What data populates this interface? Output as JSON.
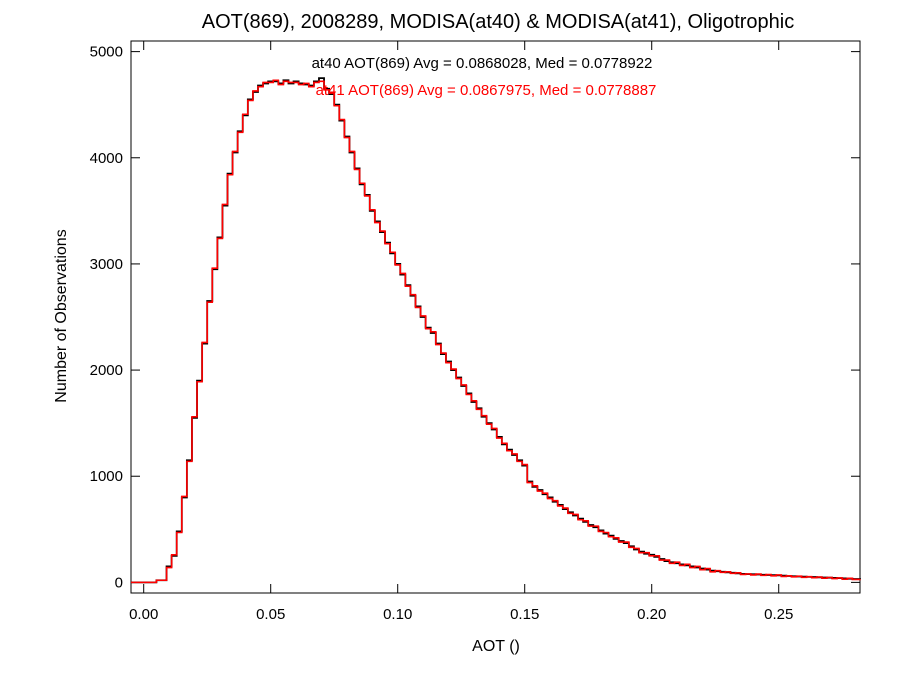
{
  "chart_data": {
    "type": "line",
    "title": "AOT(869), 2008289, MODISA(at40) & MODISA(at41), Oligotrophic",
    "xlabel": "AOT ()",
    "ylabel": "Number of Observations",
    "xlim": [
      -0.005,
      0.282
    ],
    "ylim": [
      -100,
      5100
    ],
    "xticks": [
      0.0,
      0.05,
      0.1,
      0.15,
      0.2,
      0.25
    ],
    "xtick_labels": [
      "0.00",
      "0.05",
      "0.10",
      "0.15",
      "0.20",
      "0.25"
    ],
    "yticks": [
      0,
      1000,
      2000,
      3000,
      4000,
      5000
    ],
    "ytick_labels": [
      "0",
      "1000",
      "2000",
      "3000",
      "4000",
      "5000"
    ],
    "grid": false,
    "annotations": [
      {
        "text": "at40 AOT(869) Avg = 0.0868028, Med = 0.0778922",
        "color": "#000000"
      },
      {
        "text": "at41 AOT(869) Avg = 0.0867975, Med = 0.0778887",
        "color": "#ff0000"
      }
    ],
    "series": [
      {
        "color": "#000000",
        "step": true,
        "x": [
          -0.005,
          0.0,
          0.005,
          0.009,
          0.011,
          0.013,
          0.015,
          0.017,
          0.019,
          0.021,
          0.023,
          0.025,
          0.027,
          0.029,
          0.031,
          0.033,
          0.035,
          0.037,
          0.039,
          0.041,
          0.043,
          0.045,
          0.047,
          0.049,
          0.051,
          0.053,
          0.055,
          0.057,
          0.059,
          0.061,
          0.063,
          0.065,
          0.067,
          0.069,
          0.071,
          0.073,
          0.075,
          0.077,
          0.079,
          0.081,
          0.083,
          0.085,
          0.087,
          0.089,
          0.091,
          0.093,
          0.095,
          0.097,
          0.099,
          0.101,
          0.103,
          0.105,
          0.107,
          0.109,
          0.111,
          0.113,
          0.115,
          0.117,
          0.119,
          0.121,
          0.123,
          0.125,
          0.127,
          0.129,
          0.131,
          0.133,
          0.135,
          0.137,
          0.139,
          0.141,
          0.143,
          0.145,
          0.147,
          0.149,
          0.151,
          0.153,
          0.155,
          0.157,
          0.159,
          0.161,
          0.163,
          0.165,
          0.167,
          0.169,
          0.171,
          0.173,
          0.175,
          0.177,
          0.179,
          0.181,
          0.183,
          0.185,
          0.187,
          0.189,
          0.191,
          0.193,
          0.195,
          0.197,
          0.199,
          0.201,
          0.203,
          0.205,
          0.207,
          0.209,
          0.211,
          0.213,
          0.215,
          0.217,
          0.219,
          0.221,
          0.223,
          0.225,
          0.227,
          0.229,
          0.231,
          0.233,
          0.235,
          0.237,
          0.239,
          0.241,
          0.243,
          0.245,
          0.247,
          0.249,
          0.251,
          0.253,
          0.255,
          0.257,
          0.259,
          0.261,
          0.263,
          0.265,
          0.267,
          0.269,
          0.271,
          0.273,
          0.275,
          0.277,
          0.279,
          0.282
        ],
        "y": [
          0,
          0,
          20,
          150,
          250,
          480,
          800,
          1150,
          1550,
          1900,
          2250,
          2650,
          2950,
          3250,
          3550,
          3850,
          4050,
          4250,
          4400,
          4550,
          4620,
          4680,
          4700,
          4720,
          4720,
          4700,
          4730,
          4700,
          4720,
          4700,
          4690,
          4680,
          4720,
          4750,
          4650,
          4600,
          4500,
          4350,
          4200,
          4050,
          3900,
          3750,
          3650,
          3500,
          3400,
          3300,
          3200,
          3100,
          3000,
          2900,
          2800,
          2700,
          2600,
          2500,
          2400,
          2350,
          2250,
          2150,
          2080,
          2000,
          1930,
          1850,
          1780,
          1700,
          1640,
          1560,
          1500,
          1440,
          1370,
          1300,
          1250,
          1200,
          1150,
          1100,
          950,
          900,
          870,
          830,
          800,
          760,
          730,
          690,
          660,
          630,
          600,
          570,
          540,
          520,
          490,
          460,
          440,
          410,
          390,
          370,
          340,
          310,
          290,
          270,
          260,
          240,
          220,
          200,
          190,
          180,
          170,
          160,
          150,
          140,
          130,
          120,
          110,
          105,
          100,
          95,
          90,
          85,
          80,
          78,
          76,
          74,
          72,
          70,
          68,
          66,
          64,
          60,
          58,
          56,
          54,
          52,
          50,
          48,
          46,
          44,
          42,
          40,
          38,
          35,
          32,
          30
        ]
      },
      {
        "color": "#ff0000",
        "step": true,
        "x": [
          -0.005,
          0.0,
          0.005,
          0.009,
          0.011,
          0.013,
          0.015,
          0.017,
          0.019,
          0.021,
          0.023,
          0.025,
          0.027,
          0.029,
          0.031,
          0.033,
          0.035,
          0.037,
          0.039,
          0.041,
          0.043,
          0.045,
          0.047,
          0.049,
          0.051,
          0.053,
          0.055,
          0.057,
          0.059,
          0.061,
          0.063,
          0.065,
          0.067,
          0.069,
          0.071,
          0.073,
          0.075,
          0.077,
          0.079,
          0.081,
          0.083,
          0.085,
          0.087,
          0.089,
          0.091,
          0.093,
          0.095,
          0.097,
          0.099,
          0.101,
          0.103,
          0.105,
          0.107,
          0.109,
          0.111,
          0.113,
          0.115,
          0.117,
          0.119,
          0.121,
          0.123,
          0.125,
          0.127,
          0.129,
          0.131,
          0.133,
          0.135,
          0.137,
          0.139,
          0.141,
          0.143,
          0.145,
          0.147,
          0.149,
          0.151,
          0.153,
          0.155,
          0.157,
          0.159,
          0.161,
          0.163,
          0.165,
          0.167,
          0.169,
          0.171,
          0.173,
          0.175,
          0.177,
          0.179,
          0.181,
          0.183,
          0.185,
          0.187,
          0.189,
          0.191,
          0.193,
          0.195,
          0.197,
          0.199,
          0.201,
          0.203,
          0.205,
          0.207,
          0.209,
          0.211,
          0.213,
          0.215,
          0.217,
          0.219,
          0.221,
          0.223,
          0.225,
          0.227,
          0.229,
          0.231,
          0.233,
          0.235,
          0.237,
          0.239,
          0.241,
          0.243,
          0.245,
          0.247,
          0.249,
          0.251,
          0.253,
          0.255,
          0.257,
          0.259,
          0.261,
          0.263,
          0.265,
          0.267,
          0.269,
          0.271,
          0.273,
          0.275,
          0.277,
          0.279,
          0.282
        ],
        "y": [
          0,
          0,
          20,
          140,
          260,
          470,
          810,
          1140,
          1560,
          1890,
          2260,
          2640,
          2960,
          3240,
          3560,
          3840,
          4060,
          4240,
          4410,
          4540,
          4630,
          4670,
          4710,
          4710,
          4730,
          4690,
          4720,
          4710,
          4710,
          4690,
          4700,
          4670,
          4710,
          4720,
          4640,
          4610,
          4490,
          4360,
          4190,
          4060,
          3890,
          3760,
          3640,
          3510,
          3390,
          3310,
          3190,
          3110,
          2990,
          2910,
          2790,
          2710,
          2590,
          2510,
          2390,
          2360,
          2240,
          2160,
          2070,
          2010,
          1920,
          1860,
          1770,
          1710,
          1630,
          1570,
          1490,
          1450,
          1360,
          1310,
          1240,
          1210,
          1140,
          1110,
          940,
          910,
          860,
          840,
          790,
          770,
          720,
          700,
          650,
          640,
          590,
          580,
          530,
          530,
          480,
          470,
          430,
          420,
          380,
          380,
          330,
          320,
          280,
          280,
          250,
          250,
          210,
          210,
          180,
          190,
          160,
          170,
          140,
          150,
          120,
          130,
          100,
          110,
          95,
          100,
          85,
          90,
          75,
          80,
          70,
          78,
          66,
          74,
          62,
          70,
          56,
          62,
          52,
          58,
          48,
          54,
          44,
          50,
          40,
          46,
          36,
          42,
          30,
          38,
          28,
          30
        ]
      }
    ]
  }
}
